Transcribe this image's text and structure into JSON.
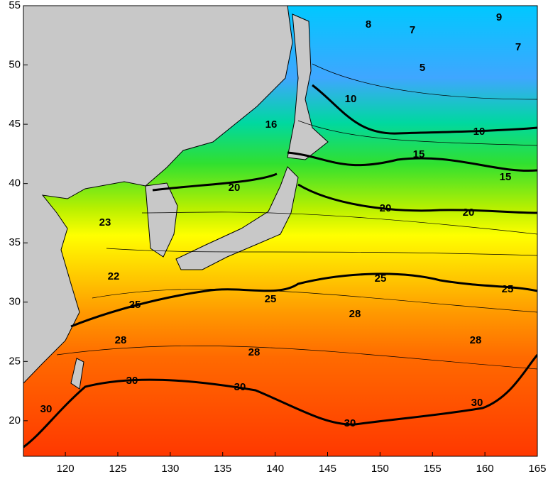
{
  "map": {
    "xlim": [
      116,
      165
    ],
    "ylim": [
      17,
      55
    ],
    "xticks": [
      120,
      125,
      130,
      135,
      140,
      145,
      150,
      155,
      160,
      165
    ],
    "yticks": [
      20,
      25,
      30,
      35,
      40,
      45,
      50,
      55
    ],
    "contour_labels": [
      8,
      7,
      9,
      7,
      5,
      10,
      10,
      16,
      15,
      15,
      20,
      20,
      20,
      23,
      22,
      25,
      25,
      25,
      25,
      28,
      28,
      28,
      28,
      30,
      30,
      30,
      30,
      30
    ]
  }
}
